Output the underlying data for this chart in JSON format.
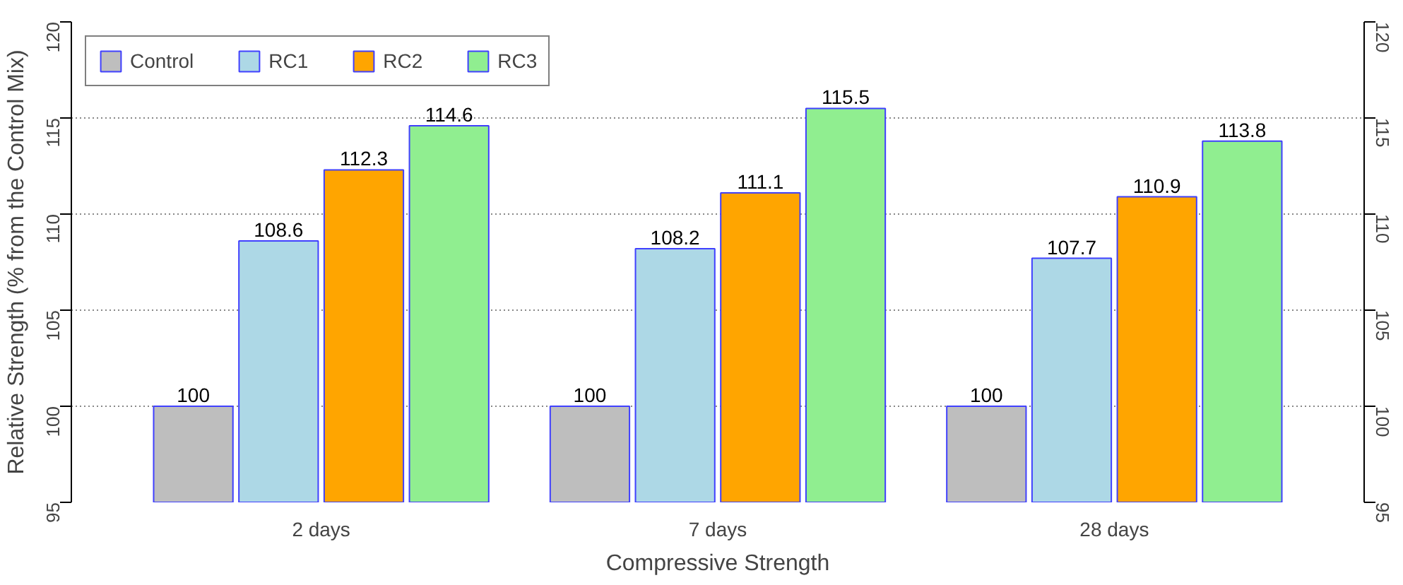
{
  "chart_data": {
    "type": "bar",
    "xlabel": "Compressive Strength",
    "ylabel": "Relative Strength (% from the Control Mix)",
    "categories": [
      "2 days",
      "7 days",
      "28 days"
    ],
    "series": [
      {
        "name": "Control",
        "color": "#bebebe",
        "values": [
          100,
          100,
          100
        ]
      },
      {
        "name": "RC1",
        "color": "#add8e6",
        "values": [
          108.6,
          108.2,
          107.7
        ]
      },
      {
        "name": "RC2",
        "color": "#ffa500",
        "values": [
          112.3,
          111.1,
          110.9
        ]
      },
      {
        "name": "RC3",
        "color": "#90ee90",
        "values": [
          114.6,
          115.5,
          113.8
        ]
      }
    ],
    "ylim": [
      95,
      120
    ],
    "yticks": [
      95,
      100,
      105,
      110,
      115,
      120
    ],
    "y2lim": [
      95,
      120
    ],
    "y2ticks": [
      95,
      100,
      105,
      110,
      115,
      120
    ],
    "grid": "y",
    "legend": "top left",
    "data_labels": true
  }
}
